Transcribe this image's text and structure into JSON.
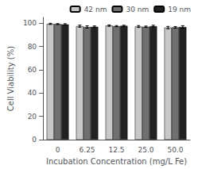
{
  "chart_data": {
    "type": "bar",
    "xlabel": "Incubation Concentration (mg/L Fe)",
    "ylabel": "Cell Viability (%)",
    "categories": [
      "0",
      "6.25",
      "12.5",
      "25.0",
      "50.0"
    ],
    "series": [
      {
        "name": "42 nm",
        "color": "#c8c8c8",
        "values": [
          99.5,
          97.5,
          98.0,
          97.2,
          96.3
        ],
        "errors": [
          0.5,
          0.9,
          0.6,
          0.8,
          1.0
        ]
      },
      {
        "name": "30 nm",
        "color": "#707070",
        "values": [
          99.3,
          96.8,
          97.5,
          97.0,
          96.5
        ],
        "errors": [
          0.4,
          1.0,
          0.5,
          0.6,
          0.7
        ]
      },
      {
        "name": "19 nm",
        "color": "#222222",
        "values": [
          99.0,
          97.0,
          97.8,
          97.5,
          96.8
        ],
        "errors": [
          0.6,
          0.7,
          0.5,
          0.8,
          1.1
        ]
      }
    ],
    "ylim": [
      0,
      105
    ],
    "yticks": [
      0,
      20,
      40,
      60,
      80,
      100
    ],
    "legend": "upper right",
    "grid": false
  }
}
